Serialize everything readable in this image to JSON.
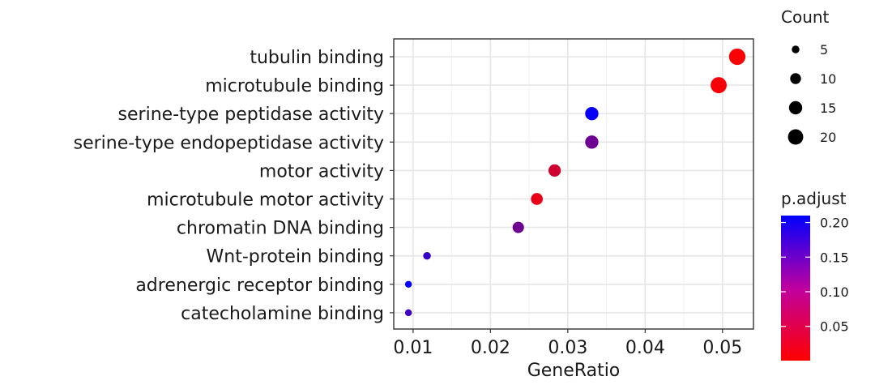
{
  "chart_data": {
    "type": "scatter",
    "xlabel": "GeneRatio",
    "ylabel": "",
    "xlim": [
      0.0075,
      0.054
    ],
    "x_ticks": [
      0.01,
      0.02,
      0.03,
      0.04,
      0.05
    ],
    "x_tick_labels": [
      "0.01",
      "0.02",
      "0.03",
      "0.04",
      "0.05"
    ],
    "grid": true,
    "categories": [
      "tubulin binding",
      "microtubule binding",
      "serine-type peptidase activity",
      "serine-type endopeptidase activity",
      "motor activity",
      "microtubule motor activity",
      "chromatin DNA binding",
      "Wnt-protein binding",
      "adrenergic receptor binding",
      "catecholamine binding"
    ],
    "points": [
      {
        "term": "tubulin binding",
        "gene_ratio": 0.0519,
        "count": 23,
        "p_adjust": 0.005
      },
      {
        "term": "microtubule binding",
        "gene_ratio": 0.0495,
        "count": 22,
        "p_adjust": 0.006
      },
      {
        "term": "serine-type peptidase activity",
        "gene_ratio": 0.0331,
        "count": 15,
        "p_adjust": 0.205
      },
      {
        "term": "serine-type endopeptidase activity",
        "gene_ratio": 0.0331,
        "count": 15,
        "p_adjust": 0.12
      },
      {
        "term": "motor activity",
        "gene_ratio": 0.0283,
        "count": 13,
        "p_adjust": 0.04
      },
      {
        "term": "microtubule motor activity",
        "gene_ratio": 0.026,
        "count": 12,
        "p_adjust": 0.02
      },
      {
        "term": "chromatin DNA binding",
        "gene_ratio": 0.0236,
        "count": 11,
        "p_adjust": 0.12
      },
      {
        "term": "Wnt-protein binding",
        "gene_ratio": 0.0118,
        "count": 5,
        "p_adjust": 0.165
      },
      {
        "term": "adrenergic receptor binding",
        "gene_ratio": 0.0094,
        "count": 4,
        "p_adjust": 0.205
      },
      {
        "term": "catecholamine binding",
        "gene_ratio": 0.0094,
        "count": 4,
        "p_adjust": 0.16
      }
    ],
    "size_legend": {
      "title": "Count",
      "values": [
        5,
        10,
        15,
        20
      ],
      "labels": [
        "5",
        "10",
        "15",
        "20"
      ]
    },
    "color_legend": {
      "title": "p.adjust",
      "range": [
        0.0005,
        0.21
      ],
      "low_color": "#ff0000",
      "high_color": "#0000ff",
      "ticks": [
        0.05,
        0.1,
        0.15,
        0.2
      ],
      "tick_labels": [
        "0.05",
        "0.10",
        "0.15",
        "0.20"
      ]
    },
    "legend_placement": "right"
  }
}
